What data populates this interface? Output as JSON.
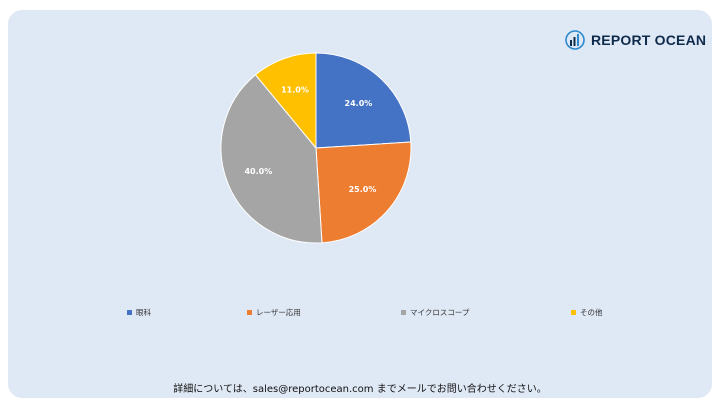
{
  "brand": {
    "name": "REPORT OCEAN",
    "logo_icon": "bar-chart-globe-icon"
  },
  "chart_data": {
    "type": "pie",
    "title": "",
    "slices": [
      {
        "label": "眼科",
        "value": 24.0,
        "display": "24.0%",
        "color": "#4472c4"
      },
      {
        "label": "レーザー応用",
        "value": 25.0,
        "display": "25.0%",
        "color": "#ed7d31"
      },
      {
        "label": "マイクロスコープ",
        "value": 40.0,
        "display": "40.0%",
        "color": "#a5a5a5"
      },
      {
        "label": "その他",
        "value": 11.0,
        "display": "11.0%",
        "color": "#ffc000"
      }
    ],
    "start_angle": "12 o'clock",
    "direction": "clockwise",
    "legend_position": "bottom"
  },
  "footer": {
    "contact_text": "詳細については、sales@reportocean.com までメールでお問い合わせください。"
  }
}
